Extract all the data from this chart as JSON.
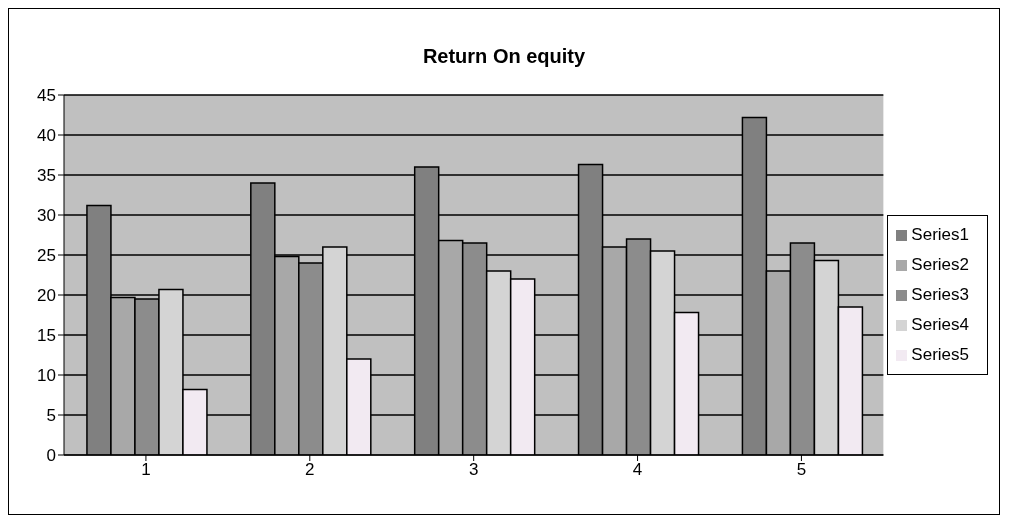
{
  "chart_data": {
    "type": "bar",
    "title": "Return On equity",
    "categories": [
      "1",
      "2",
      "3",
      "4",
      "5"
    ],
    "series": [
      {
        "name": "Series1",
        "color": "#808080",
        "values": [
          31.2,
          34,
          36,
          36.3,
          42.2
        ]
      },
      {
        "name": "Series2",
        "color": "#a8a8a8",
        "values": [
          19.7,
          24.8,
          26.8,
          26,
          23
        ]
      },
      {
        "name": "Series3",
        "color": "#8c8c8c",
        "values": [
          19.5,
          24,
          26.5,
          27,
          26.5
        ]
      },
      {
        "name": "Series4",
        "color": "#d4d4d4",
        "values": [
          20.7,
          26,
          23,
          25.5,
          24.3
        ]
      },
      {
        "name": "Series5",
        "color": "#f2eaf2",
        "values": [
          8.2,
          12,
          22,
          17.8,
          18.5
        ]
      }
    ],
    "ylim": [
      0,
      45
    ],
    "yticks": [
      0,
      5,
      10,
      15,
      20,
      25,
      30,
      35,
      40,
      45
    ],
    "grid": "y",
    "legend": "right"
  }
}
